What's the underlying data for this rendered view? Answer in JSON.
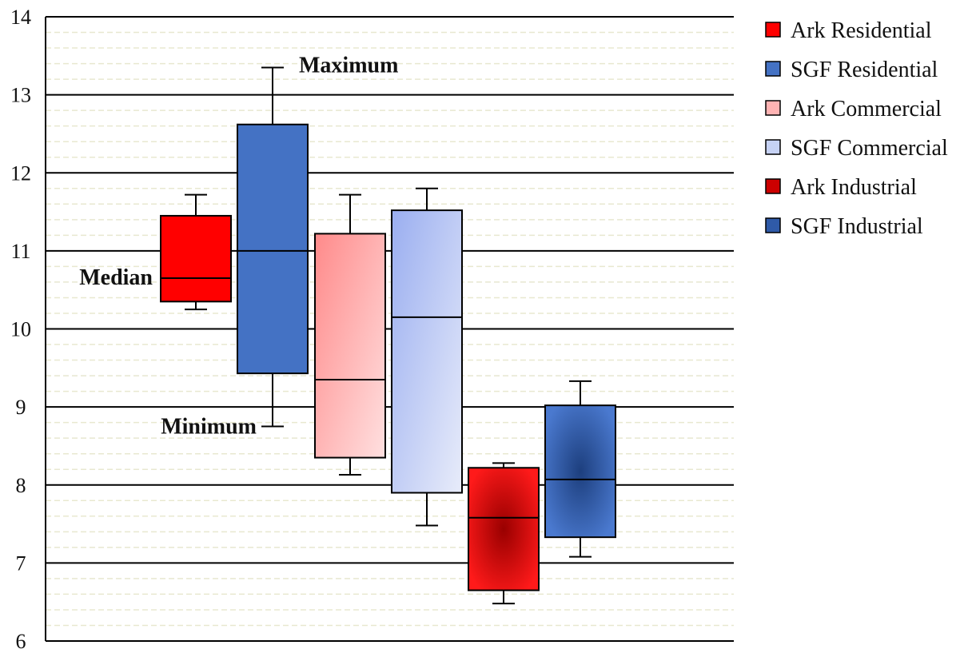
{
  "chart_data": {
    "type": "box",
    "title": "",
    "xlabel": "",
    "ylabel": "",
    "ylim": [
      6,
      14
    ],
    "y_ticks": [
      "6",
      "7",
      "8",
      "9",
      "10",
      "11",
      "12",
      "13",
      "14"
    ],
    "grid": {
      "major": true,
      "minor": true
    },
    "legend_position": "right",
    "series": [
      {
        "name": "Ark Residential",
        "min": 10.25,
        "q1": 10.35,
        "median": 10.65,
        "q3": 11.45,
        "max": 11.72,
        "color": "#ff0000",
        "fill_style": "flat"
      },
      {
        "name": "SGF Residential",
        "min": 8.75,
        "q1": 9.43,
        "median": 11.0,
        "q3": 12.62,
        "max": 13.35,
        "color": "#4472c4",
        "fill_style": "flat"
      },
      {
        "name": "Ark Commercial",
        "min": 8.13,
        "q1": 8.35,
        "median": 9.35,
        "q3": 11.22,
        "max": 11.72,
        "color": "#ff8c8c",
        "fill_style": "gradient"
      },
      {
        "name": "SGF Commercial",
        "min": 7.48,
        "q1": 7.9,
        "median": 10.15,
        "q3": 11.52,
        "max": 11.8,
        "color": "#9fb3ea",
        "fill_style": "gradient"
      },
      {
        "name": "Ark Industrial",
        "min": 6.48,
        "q1": 6.65,
        "median": 7.58,
        "q3": 8.22,
        "max": 8.28,
        "color": "#dd0000",
        "fill_style": "radial"
      },
      {
        "name": "SGF Industrial",
        "min": 7.08,
        "q1": 7.33,
        "median": 8.07,
        "q3": 9.02,
        "max": 9.33,
        "color": "#3f68b8",
        "fill_style": "radial"
      }
    ],
    "annotations": [
      {
        "text": "Maximum",
        "series_index": 1,
        "points_to": "max"
      },
      {
        "text": "Median",
        "series_index": 0,
        "points_to": "median"
      },
      {
        "text": "Minimum",
        "series_index": 1,
        "points_to": "min"
      }
    ]
  }
}
